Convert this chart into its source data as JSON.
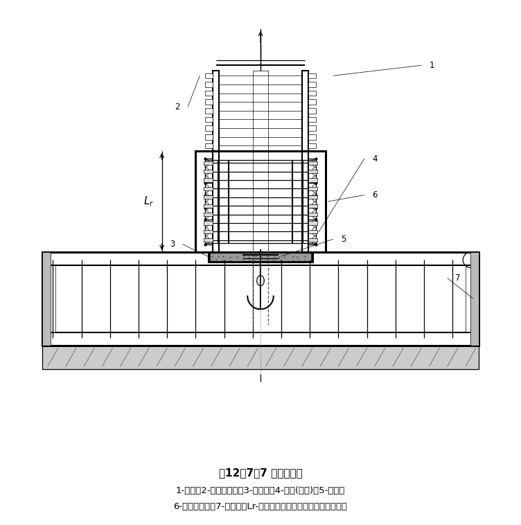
{
  "title": "图12．7．7 外包式柱脚",
  "caption_line1": "1-钢柱；2-水平加劲肋；3-柱底板；4-栓钉(可选)；5-锚栓；",
  "caption_line2": "6-外包混凝土；7-基础梁；Lr-外包混凝土顶部箍筋至柱底板的距离",
  "bg_color": "#ffffff",
  "line_color": "#000000"
}
